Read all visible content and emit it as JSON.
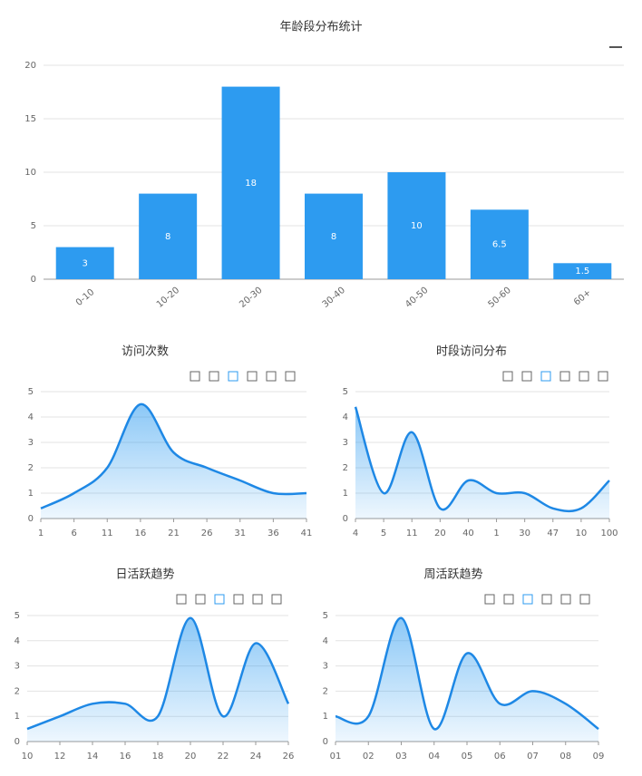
{
  "chart_data": [
    {
      "type": "bar",
      "title": "年龄段分布统计",
      "categories": [
        "0-10",
        "10-20",
        "20-30",
        "30-40",
        "40-50",
        "50-60",
        "60+"
      ],
      "values": [
        3,
        8,
        18,
        8,
        10,
        6.5,
        1.5
      ],
      "color": "#2d9bf0",
      "ylim": [
        0,
        20
      ],
      "yticks": [
        0,
        5,
        10,
        15,
        20
      ],
      "grid": true
    },
    {
      "type": "line",
      "title": "访问次数",
      "categories": [
        "1",
        "6",
        "11",
        "16",
        "21",
        "26",
        "31",
        "36",
        "41"
      ],
      "values": [
        0.4,
        1,
        2,
        4.5,
        2.6,
        2,
        1.5,
        1,
        1
      ],
      "color": "#1e88e5",
      "ylim": [
        0,
        5
      ],
      "yticks": [
        0,
        1,
        2,
        3,
        4,
        5
      ],
      "grid": true
    },
    {
      "type": "line",
      "title": "时段访问分布",
      "categories": [
        "4",
        "5",
        "11",
        "20",
        "40",
        "1",
        "30",
        "47",
        "10",
        "100"
      ],
      "values": [
        4.4,
        1,
        3.4,
        0.4,
        1.5,
        1,
        1,
        0.4,
        0.4,
        1.5
      ],
      "color": "#1e88e5",
      "ylim": [
        0,
        5
      ],
      "yticks": [
        0,
        1,
        2,
        3,
        4,
        5
      ],
      "grid": true
    },
    {
      "type": "line",
      "title": "日活跃趋势",
      "categories": [
        "10",
        "12",
        "14",
        "16",
        "18",
        "20",
        "22",
        "24",
        "26"
      ],
      "values": [
        0.5,
        1,
        1.5,
        1.5,
        1,
        4.9,
        1,
        3.9,
        1.5
      ],
      "color": "#1e88e5",
      "ylim": [
        0,
        5
      ],
      "yticks": [
        0,
        1,
        2,
        3,
        4,
        5
      ],
      "grid": true
    },
    {
      "type": "line",
      "title": "周活跃趋势",
      "categories": [
        "01",
        "02",
        "03",
        "04",
        "05",
        "06",
        "07",
        "08",
        "09"
      ],
      "values": [
        1,
        1,
        4.9,
        0.5,
        3.5,
        1.5,
        2,
        1.5,
        0.5
      ],
      "color": "#1e88e5",
      "ylim": [
        0,
        5
      ],
      "yticks": [
        0,
        1,
        2,
        3,
        4,
        5
      ],
      "grid": true
    }
  ]
}
